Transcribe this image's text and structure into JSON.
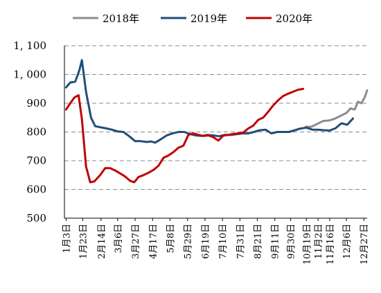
{
  "chart_data": {
    "type": "line",
    "title": "",
    "xlabel": "",
    "ylabel": "",
    "ylim": [
      500,
      1100
    ],
    "y_ticks": [
      500,
      600,
      700,
      800,
      900,
      1000,
      1100
    ],
    "y_tick_labels": [
      "500",
      "600",
      "700",
      "800",
      "900",
      "1, 000",
      "1, 100"
    ],
    "x_range_days": [
      1,
      365
    ],
    "x_tick_labels": [
      "1月3日",
      "1月23日",
      "2月14日",
      "3月6日",
      "3月27日",
      "4月17日",
      "5月8日",
      "5月29日",
      "6月19日",
      "7月10日",
      "7月31日",
      "8月21日",
      "9月11日",
      "9月30日",
      "10月19日",
      "11月2日",
      "11月16日",
      "12月6日",
      "12月27日"
    ],
    "x_tick_days": [
      3,
      23,
      45,
      65,
      86,
      107,
      128,
      149,
      170,
      191,
      212,
      233,
      254,
      273,
      292,
      306,
      320,
      340,
      361
    ],
    "legend_position": "top",
    "grid": true,
    "series": [
      {
        "name": "2018年",
        "color": "#8c8c8c",
        "points": [
          [
            291,
            818
          ],
          [
            298,
            818
          ],
          [
            305,
            828
          ],
          [
            312,
            838
          ],
          [
            319,
            840
          ],
          [
            326,
            846
          ],
          [
            333,
            856
          ],
          [
            340,
            866
          ],
          [
            345,
            882
          ],
          [
            350,
            878
          ],
          [
            354,
            905
          ],
          [
            358,
            900
          ],
          [
            362,
            920
          ],
          [
            365,
            945
          ]
        ]
      },
      {
        "name": "2019年",
        "color": "#1f4e79",
        "points": [
          [
            3,
            955
          ],
          [
            8,
            972
          ],
          [
            14,
            975
          ],
          [
            19,
            1015
          ],
          [
            22,
            1050
          ],
          [
            27,
            940
          ],
          [
            33,
            850
          ],
          [
            38,
            820
          ],
          [
            45,
            816
          ],
          [
            52,
            812
          ],
          [
            58,
            808
          ],
          [
            65,
            802
          ],
          [
            72,
            800
          ],
          [
            79,
            785
          ],
          [
            86,
            768
          ],
          [
            93,
            768
          ],
          [
            100,
            765
          ],
          [
            105,
            767
          ],
          [
            110,
            763
          ],
          [
            117,
            775
          ],
          [
            124,
            788
          ],
          [
            131,
            795
          ],
          [
            138,
            800
          ],
          [
            145,
            800
          ],
          [
            152,
            793
          ],
          [
            159,
            788
          ],
          [
            166,
            786
          ],
          [
            173,
            790
          ],
          [
            180,
            788
          ],
          [
            187,
            785
          ],
          [
            194,
            790
          ],
          [
            201,
            790
          ],
          [
            208,
            792
          ],
          [
            215,
            795
          ],
          [
            222,
            795
          ],
          [
            229,
            800
          ],
          [
            236,
            806
          ],
          [
            243,
            808
          ],
          [
            250,
            795
          ],
          [
            257,
            800
          ],
          [
            264,
            800
          ],
          [
            271,
            800
          ],
          [
            278,
            806
          ],
          [
            285,
            812
          ],
          [
            292,
            815
          ],
          [
            299,
            808
          ],
          [
            306,
            808
          ],
          [
            313,
            806
          ],
          [
            320,
            805
          ],
          [
            327,
            813
          ],
          [
            334,
            830
          ],
          [
            341,
            825
          ],
          [
            348,
            847
          ]
        ]
      },
      {
        "name": "2020年",
        "color": "#c00000",
        "points": [
          [
            3,
            878
          ],
          [
            8,
            900
          ],
          [
            13,
            920
          ],
          [
            18,
            928
          ],
          [
            22,
            845
          ],
          [
            27,
            680
          ],
          [
            32,
            625
          ],
          [
            37,
            628
          ],
          [
            44,
            650
          ],
          [
            50,
            674
          ],
          [
            56,
            674
          ],
          [
            62,
            666
          ],
          [
            68,
            656
          ],
          [
            74,
            645
          ],
          [
            80,
            630
          ],
          [
            85,
            625
          ],
          [
            90,
            643
          ],
          [
            96,
            650
          ],
          [
            102,
            658
          ],
          [
            108,
            668
          ],
          [
            114,
            682
          ],
          [
            120,
            710
          ],
          [
            126,
            718
          ],
          [
            132,
            730
          ],
          [
            138,
            745
          ],
          [
            144,
            752
          ],
          [
            150,
            790
          ],
          [
            156,
            795
          ],
          [
            162,
            790
          ],
          [
            168,
            786
          ],
          [
            174,
            788
          ],
          [
            180,
            782
          ],
          [
            186,
            770
          ],
          [
            192,
            787
          ],
          [
            198,
            790
          ],
          [
            204,
            793
          ],
          [
            210,
            795
          ],
          [
            216,
            798
          ],
          [
            222,
            812
          ],
          [
            228,
            822
          ],
          [
            234,
            842
          ],
          [
            240,
            850
          ],
          [
            246,
            870
          ],
          [
            252,
            892
          ],
          [
            258,
            910
          ],
          [
            264,
            925
          ],
          [
            270,
            933
          ],
          [
            276,
            940
          ],
          [
            282,
            947
          ],
          [
            288,
            950
          ]
        ]
      }
    ]
  }
}
